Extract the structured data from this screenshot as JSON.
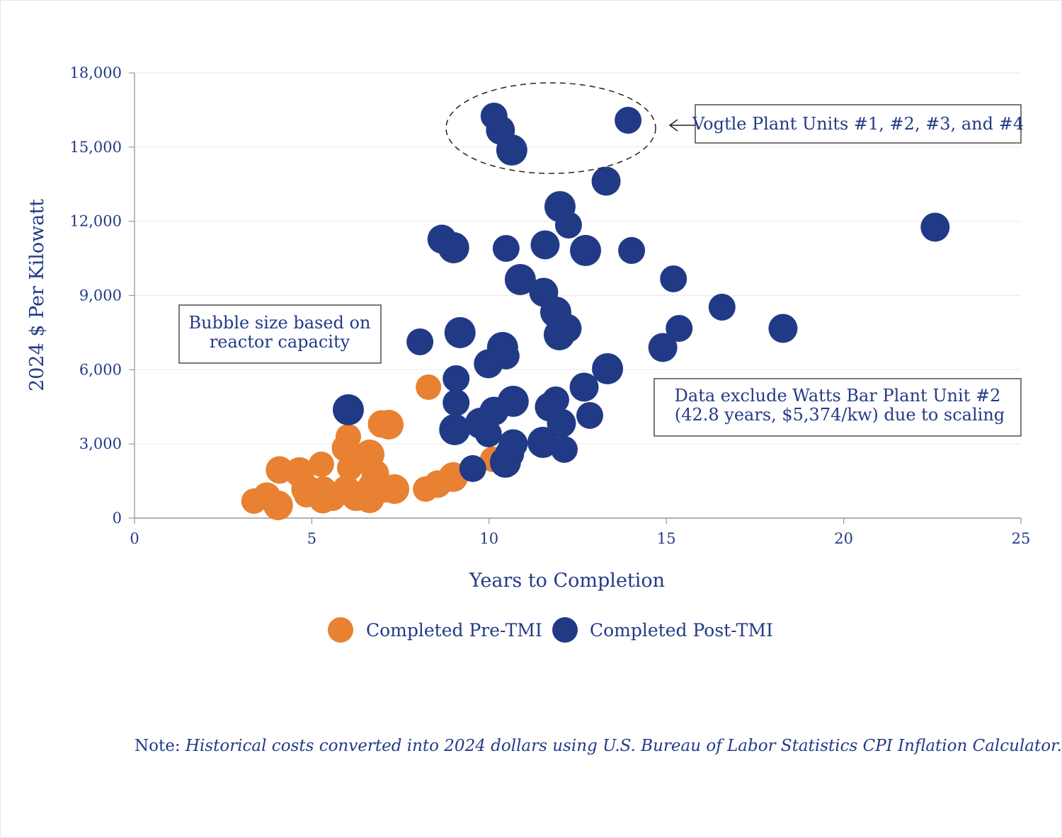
{
  "chart_data": {
    "type": "scatter",
    "subtype": "bubble",
    "xlabel": "Years to Completion",
    "ylabel": "2024 $ Per Kilowatt",
    "xlim": [
      0,
      25
    ],
    "ylim": [
      0,
      18000
    ],
    "xticks": [
      0,
      5,
      10,
      15,
      20,
      25
    ],
    "yticks": [
      0,
      3000,
      6000,
      9000,
      12000,
      15000,
      18000
    ],
    "ytick_labels": [
      "0",
      "3,000",
      "6,000",
      "9,000",
      "12,000",
      "15,000",
      "18,000"
    ],
    "grid": "horizontal",
    "legend_position": "bottom-center",
    "colors": {
      "pre": "#e88131",
      "post": "#213a86",
      "text": "#233a87"
    },
    "series": [
      {
        "name": "Completed Pre-TMI",
        "color": "#e88131",
        "points": [
          [
            8.29,
            5295
          ],
          [
            6.97,
            3806
          ],
          [
            7.17,
            3778
          ],
          [
            6.03,
            3291
          ],
          [
            5.95,
            2833
          ],
          [
            6.63,
            2576
          ],
          [
            5.27,
            2175
          ],
          [
            4.09,
            1946
          ],
          [
            4.65,
            1860
          ],
          [
            6.07,
            2032
          ],
          [
            6.79,
            1803
          ],
          [
            4.84,
            1173
          ],
          [
            5.33,
            1173
          ],
          [
            5.97,
            1173
          ],
          [
            7.33,
            1173
          ],
          [
            8.21,
            1173
          ],
          [
            8.55,
            1374
          ],
          [
            8.99,
            1660
          ],
          [
            10.1,
            2375
          ],
          [
            6.69,
            1288
          ],
          [
            6.25,
            887
          ],
          [
            5.59,
            801
          ],
          [
            5.31,
            744
          ],
          [
            6.63,
            801
          ],
          [
            3.37,
            687
          ],
          [
            3.73,
            887
          ],
          [
            4.05,
            515
          ],
          [
            4.85,
            944
          ],
          [
            7.0,
            1173
          ]
        ]
      },
      {
        "name": "Completed Post-TMI",
        "color": "#213a86",
        "points": [
          [
            10.14,
            16256
          ],
          [
            10.32,
            15684
          ],
          [
            10.64,
            14883
          ],
          [
            13.92,
            16085
          ],
          [
            13.3,
            13623
          ],
          [
            12.0,
            12593
          ],
          [
            12.24,
            11849
          ],
          [
            8.67,
            11277
          ],
          [
            9.0,
            10933
          ],
          [
            10.48,
            10904
          ],
          [
            11.58,
            11047
          ],
          [
            12.72,
            10819
          ],
          [
            14.02,
            10819
          ],
          [
            22.58,
            11763
          ],
          [
            10.88,
            9645
          ],
          [
            15.2,
            9674
          ],
          [
            11.54,
            9130
          ],
          [
            11.88,
            8329
          ],
          [
            16.57,
            8529
          ],
          [
            12.2,
            7670
          ],
          [
            11.98,
            7413
          ],
          [
            15.36,
            7670
          ],
          [
            18.29,
            7670
          ],
          [
            9.18,
            7499
          ],
          [
            8.05,
            7126
          ],
          [
            14.9,
            6898
          ],
          [
            10.38,
            6898
          ],
          [
            10.48,
            6554
          ],
          [
            9.98,
            6239
          ],
          [
            13.34,
            6039
          ],
          [
            9.07,
            5638
          ],
          [
            12.68,
            5295
          ],
          [
            10.68,
            4722
          ],
          [
            11.88,
            4780
          ],
          [
            11.7,
            4493
          ],
          [
            6.03,
            4379
          ],
          [
            9.07,
            4665
          ],
          [
            10.14,
            4322
          ],
          [
            9.76,
            3835
          ],
          [
            12.84,
            4150
          ],
          [
            12.04,
            3835
          ],
          [
            9.03,
            3578
          ],
          [
            9.98,
            3406
          ],
          [
            10.68,
            3005
          ],
          [
            11.52,
            3062
          ],
          [
            12.12,
            2776
          ],
          [
            10.58,
            2604
          ],
          [
            10.46,
            2261
          ],
          [
            9.54,
            2003
          ]
        ]
      }
    ],
    "annotations": {
      "vogtle": "Vogtle Plant Units #1, #2, #3, and #4",
      "bubble_line1": "Bubble size based on",
      "bubble_line2": "reactor capacity",
      "exclude_line1": "Data exclude Watts Bar Plant Unit #2",
      "exclude_line2": "(42.8 years, $5,374/kw) due to scaling"
    }
  },
  "note": {
    "label": "Note:",
    "text": "Historical costs converted into 2024 dollars using U.S. Bureau of Labor Statistics CPI Inflation Calculator."
  }
}
